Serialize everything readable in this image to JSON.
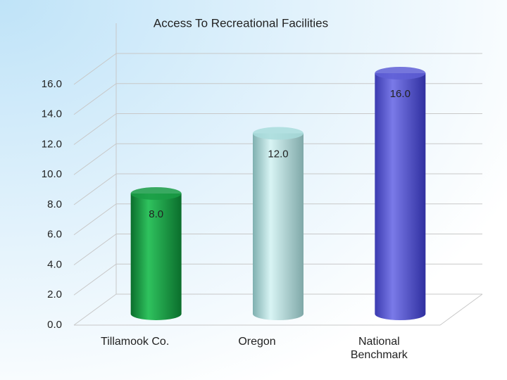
{
  "chart_data": {
    "type": "bar",
    "title": "Access To Recreational Facilities",
    "categories": [
      "Tillamook Co.",
      "Oregon",
      "National Benchmark"
    ],
    "values": [
      8,
      12,
      16
    ],
    "value_labels": [
      "8.0",
      "12.0",
      "16.0"
    ],
    "colors": [
      "#1a9c45",
      "#a9dcdc",
      "#5f5fd6"
    ],
    "ylim": [
      0,
      16
    ],
    "yticks": [
      {
        "value": 0,
        "label": "0.0"
      },
      {
        "value": 2,
        "label": "2.0"
      },
      {
        "value": 4,
        "label": "4.0"
      },
      {
        "value": 6,
        "label": "6.0"
      },
      {
        "value": 8,
        "label": "8.0"
      },
      {
        "value": 10,
        "label": "10.0"
      },
      {
        "value": 12,
        "label": "12.0"
      },
      {
        "value": 14,
        "label": "14.0"
      },
      {
        "value": 16,
        "label": "16.0"
      }
    ],
    "grid": true
  }
}
